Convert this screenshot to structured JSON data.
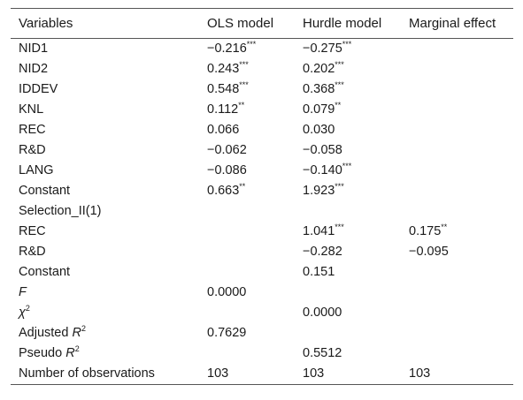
{
  "headers": [
    "Variables",
    "OLS model",
    "Hurdle model",
    "Marginal effect"
  ],
  "rows": [
    {
      "variable": "NID1",
      "ols": "−0.216",
      "ols_sig": "***",
      "hurdle": "−0.275",
      "hurdle_sig": "***",
      "marginal": "",
      "marginal_sig": ""
    },
    {
      "variable": "NID2",
      "ols": "0.243",
      "ols_sig": "***",
      "hurdle": "0.202",
      "hurdle_sig": "***",
      "marginal": "",
      "marginal_sig": ""
    },
    {
      "variable": "IDDEV",
      "ols": "0.548",
      "ols_sig": "***",
      "hurdle": "0.368",
      "hurdle_sig": "***",
      "marginal": "",
      "marginal_sig": ""
    },
    {
      "variable": "KNL",
      "ols": "0.112",
      "ols_sig": "**",
      "hurdle": "0.079",
      "hurdle_sig": "**",
      "marginal": "",
      "marginal_sig": ""
    },
    {
      "variable": "REC",
      "ols": "0.066",
      "ols_sig": "",
      "hurdle": "0.030",
      "hurdle_sig": "",
      "marginal": "",
      "marginal_sig": ""
    },
    {
      "variable": "R&D",
      "ols": "−0.062",
      "ols_sig": "",
      "hurdle": "−0.058",
      "hurdle_sig": "",
      "marginal": "",
      "marginal_sig": ""
    },
    {
      "variable": "LANG",
      "ols": "−0.086",
      "ols_sig": "",
      "hurdle": "−0.140",
      "hurdle_sig": "***",
      "marginal": "",
      "marginal_sig": ""
    },
    {
      "variable": "Constant",
      "ols": "0.663",
      "ols_sig": "**",
      "hurdle": "1.923",
      "hurdle_sig": "***",
      "marginal": "",
      "marginal_sig": ""
    },
    {
      "variable": "Selection_II(1)",
      "ols": "",
      "ols_sig": "",
      "hurdle": "",
      "hurdle_sig": "",
      "marginal": "",
      "marginal_sig": ""
    },
    {
      "variable": "REC",
      "ols": "",
      "ols_sig": "",
      "hurdle": "1.041",
      "hurdle_sig": "***",
      "marginal": "0.175",
      "marginal_sig": "**"
    },
    {
      "variable": "R&D",
      "ols": "",
      "ols_sig": "",
      "hurdle": "−0.282",
      "hurdle_sig": "",
      "marginal": "−0.095",
      "marginal_sig": ""
    },
    {
      "variable": "Constant",
      "ols": "",
      "ols_sig": "",
      "hurdle": "0.151",
      "hurdle_sig": "",
      "marginal": "",
      "marginal_sig": ""
    }
  ],
  "stats": {
    "f_label": "F",
    "f_ols": "0.0000",
    "chi_label": "χ",
    "chi_sup": "2",
    "chi_hurdle": "0.0000",
    "adjr2_prefix": "Adjusted ",
    "adjr2_var": "R",
    "adjr2_sup": "2",
    "adjr2_ols": "0.7629",
    "pseudor2_prefix": "Pseudo ",
    "pseudor2_var": "R",
    "pseudor2_sup": "2",
    "pseudor2_hurdle": "0.5512",
    "nobs_label": "Number of observations",
    "nobs_ols": "103",
    "nobs_hurdle": "103",
    "nobs_marginal": "103"
  }
}
